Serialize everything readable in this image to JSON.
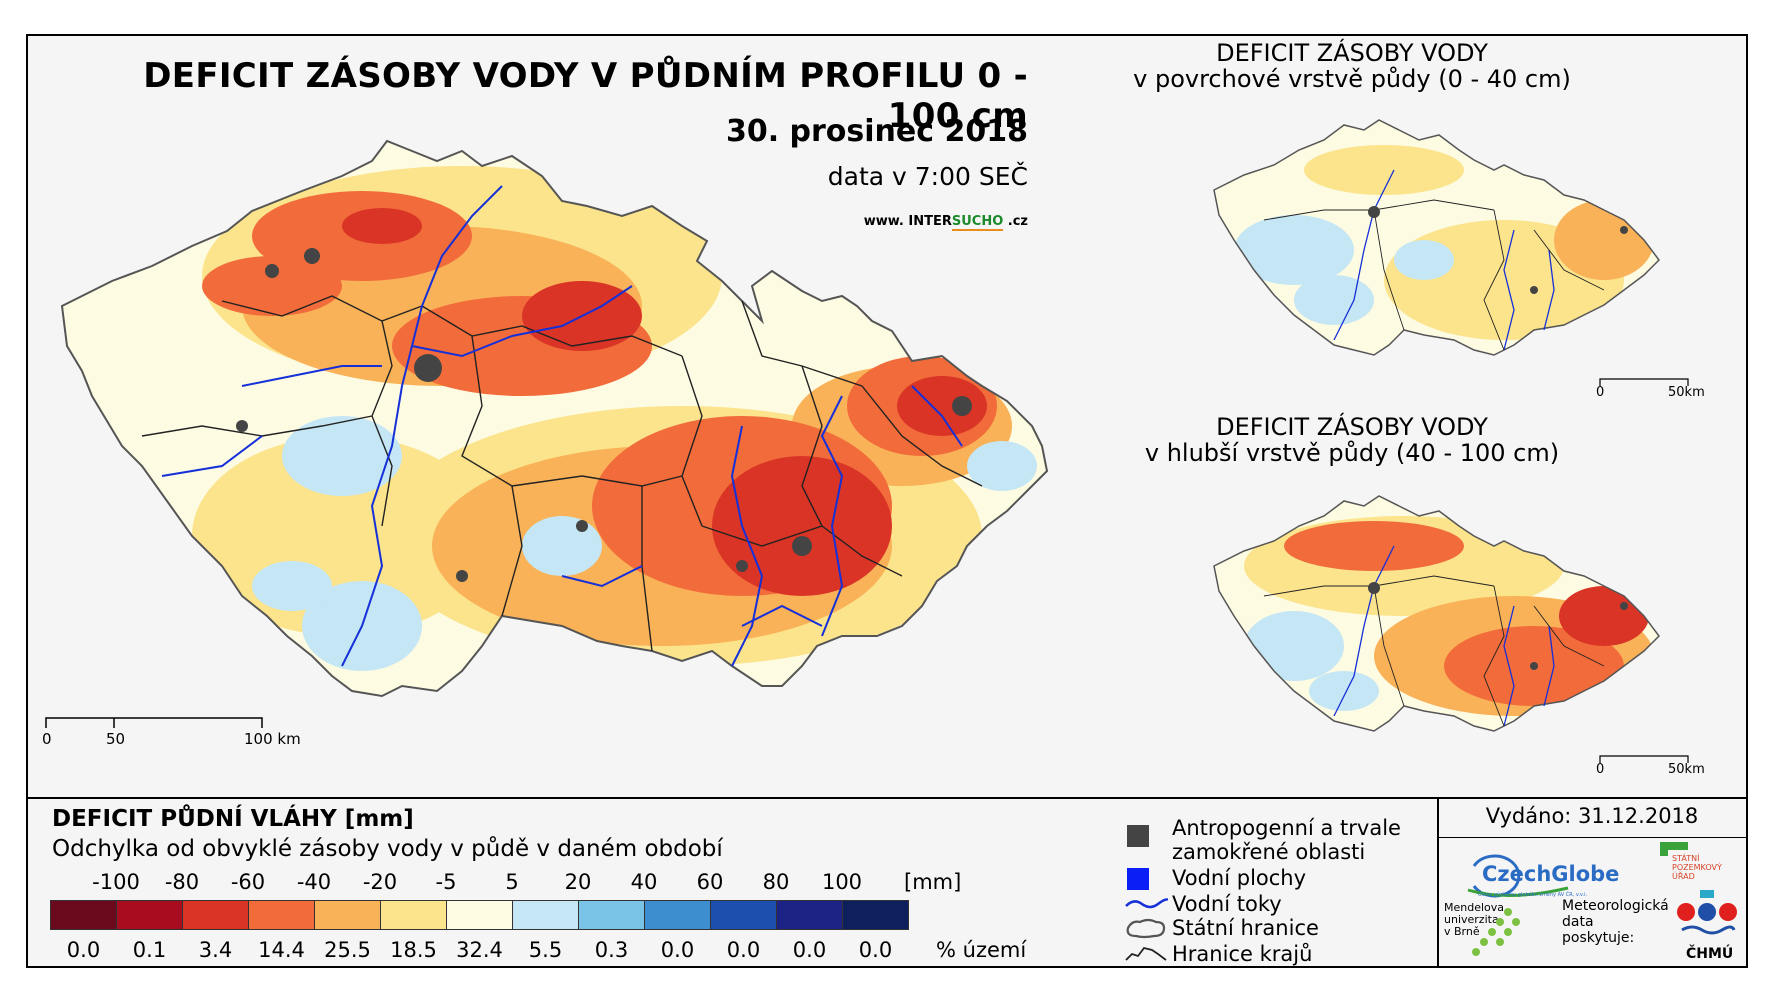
{
  "main": {
    "title": "DEFICIT ZÁSOBY VODY V PŮDNÍM PROFILU 0 - 100 cm",
    "date": "30. prosinec 2018",
    "data_time": "data v 7:00 SEČ",
    "web_prefix": "www. INTER",
    "web_mid": "SUCHO",
    "web_suffix": " .cz",
    "scale": [
      "0",
      "50",
      "100 km"
    ]
  },
  "inset_top": {
    "title_line1": "DEFICIT ZÁSOBY VODY",
    "title_line2": "v povrchové vrstvě půdy (0 - 40 cm)",
    "scale": [
      "0",
      "50km"
    ]
  },
  "inset_bottom": {
    "title_line1": "DEFICIT ZÁSOBY VODY",
    "title_line2": "v hlubší vrstvě půdy (40 - 100 cm)",
    "scale": [
      "0",
      "50km"
    ]
  },
  "legend": {
    "title": "DEFICIT PŮDNÍ VLÁHY [mm]",
    "subtitle": "Odchylka od obvyklé zásoby vody v půdě v daném období",
    "thresholds": [
      "-100",
      "-80",
      "-60",
      "-40",
      "-20",
      "-5",
      "5",
      "20",
      "40",
      "60",
      "80",
      "100"
    ],
    "unit": "[mm]",
    "classes": [
      {
        "color": "#6b0a1c",
        "pct": "0.0"
      },
      {
        "color": "#a80d1f",
        "pct": "0.1"
      },
      {
        "color": "#d93426",
        "pct": "3.4"
      },
      {
        "color": "#f26b3a",
        "pct": "14.4"
      },
      {
        "color": "#f9b258",
        "pct": "25.5"
      },
      {
        "color": "#fbe48c",
        "pct": "18.5"
      },
      {
        "color": "#fefbe3",
        "pct": "32.4"
      },
      {
        "color": "#c5e6f4",
        "pct": "5.5"
      },
      {
        "color": "#78c3e6",
        "pct": "0.3"
      },
      {
        "color": "#3d8ecf",
        "pct": "0.0"
      },
      {
        "color": "#1c4fae",
        "pct": "0.0"
      },
      {
        "color": "#1d2385",
        "pct": "0.0"
      },
      {
        "color": "#0d1f5c",
        "pct": "0.0"
      }
    ],
    "pct_unit": "% území"
  },
  "symbols": {
    "anthropogenic_line1": "Antropogenní a trvale",
    "anthropogenic_line2": "zamokřené oblasti",
    "water_bodies": "Vodní plochy",
    "rivers": "Vodní toky",
    "state_border": "Státní hranice",
    "region_border": "Hranice krajů"
  },
  "issued": "Vydáno: 31.12.2018",
  "logos": {
    "czechglobe": "CzechGlobe",
    "czechglobe_sub": "Ústav výzkumu globální změny AV ČR, v.v.i.",
    "spu_line1": "STÁTNÍ",
    "spu_line2": "POZEMKOVÝ",
    "spu_line3": "ÚŘAD",
    "mendel_line1": "Mendelova",
    "mendel_line2": "univerzita",
    "mendel_line3": "v Brně",
    "meteo_line1": "Meteorologická",
    "meteo_line2": "data",
    "meteo_line3": "poskytuje:",
    "chmu": "ČHMÚ"
  }
}
